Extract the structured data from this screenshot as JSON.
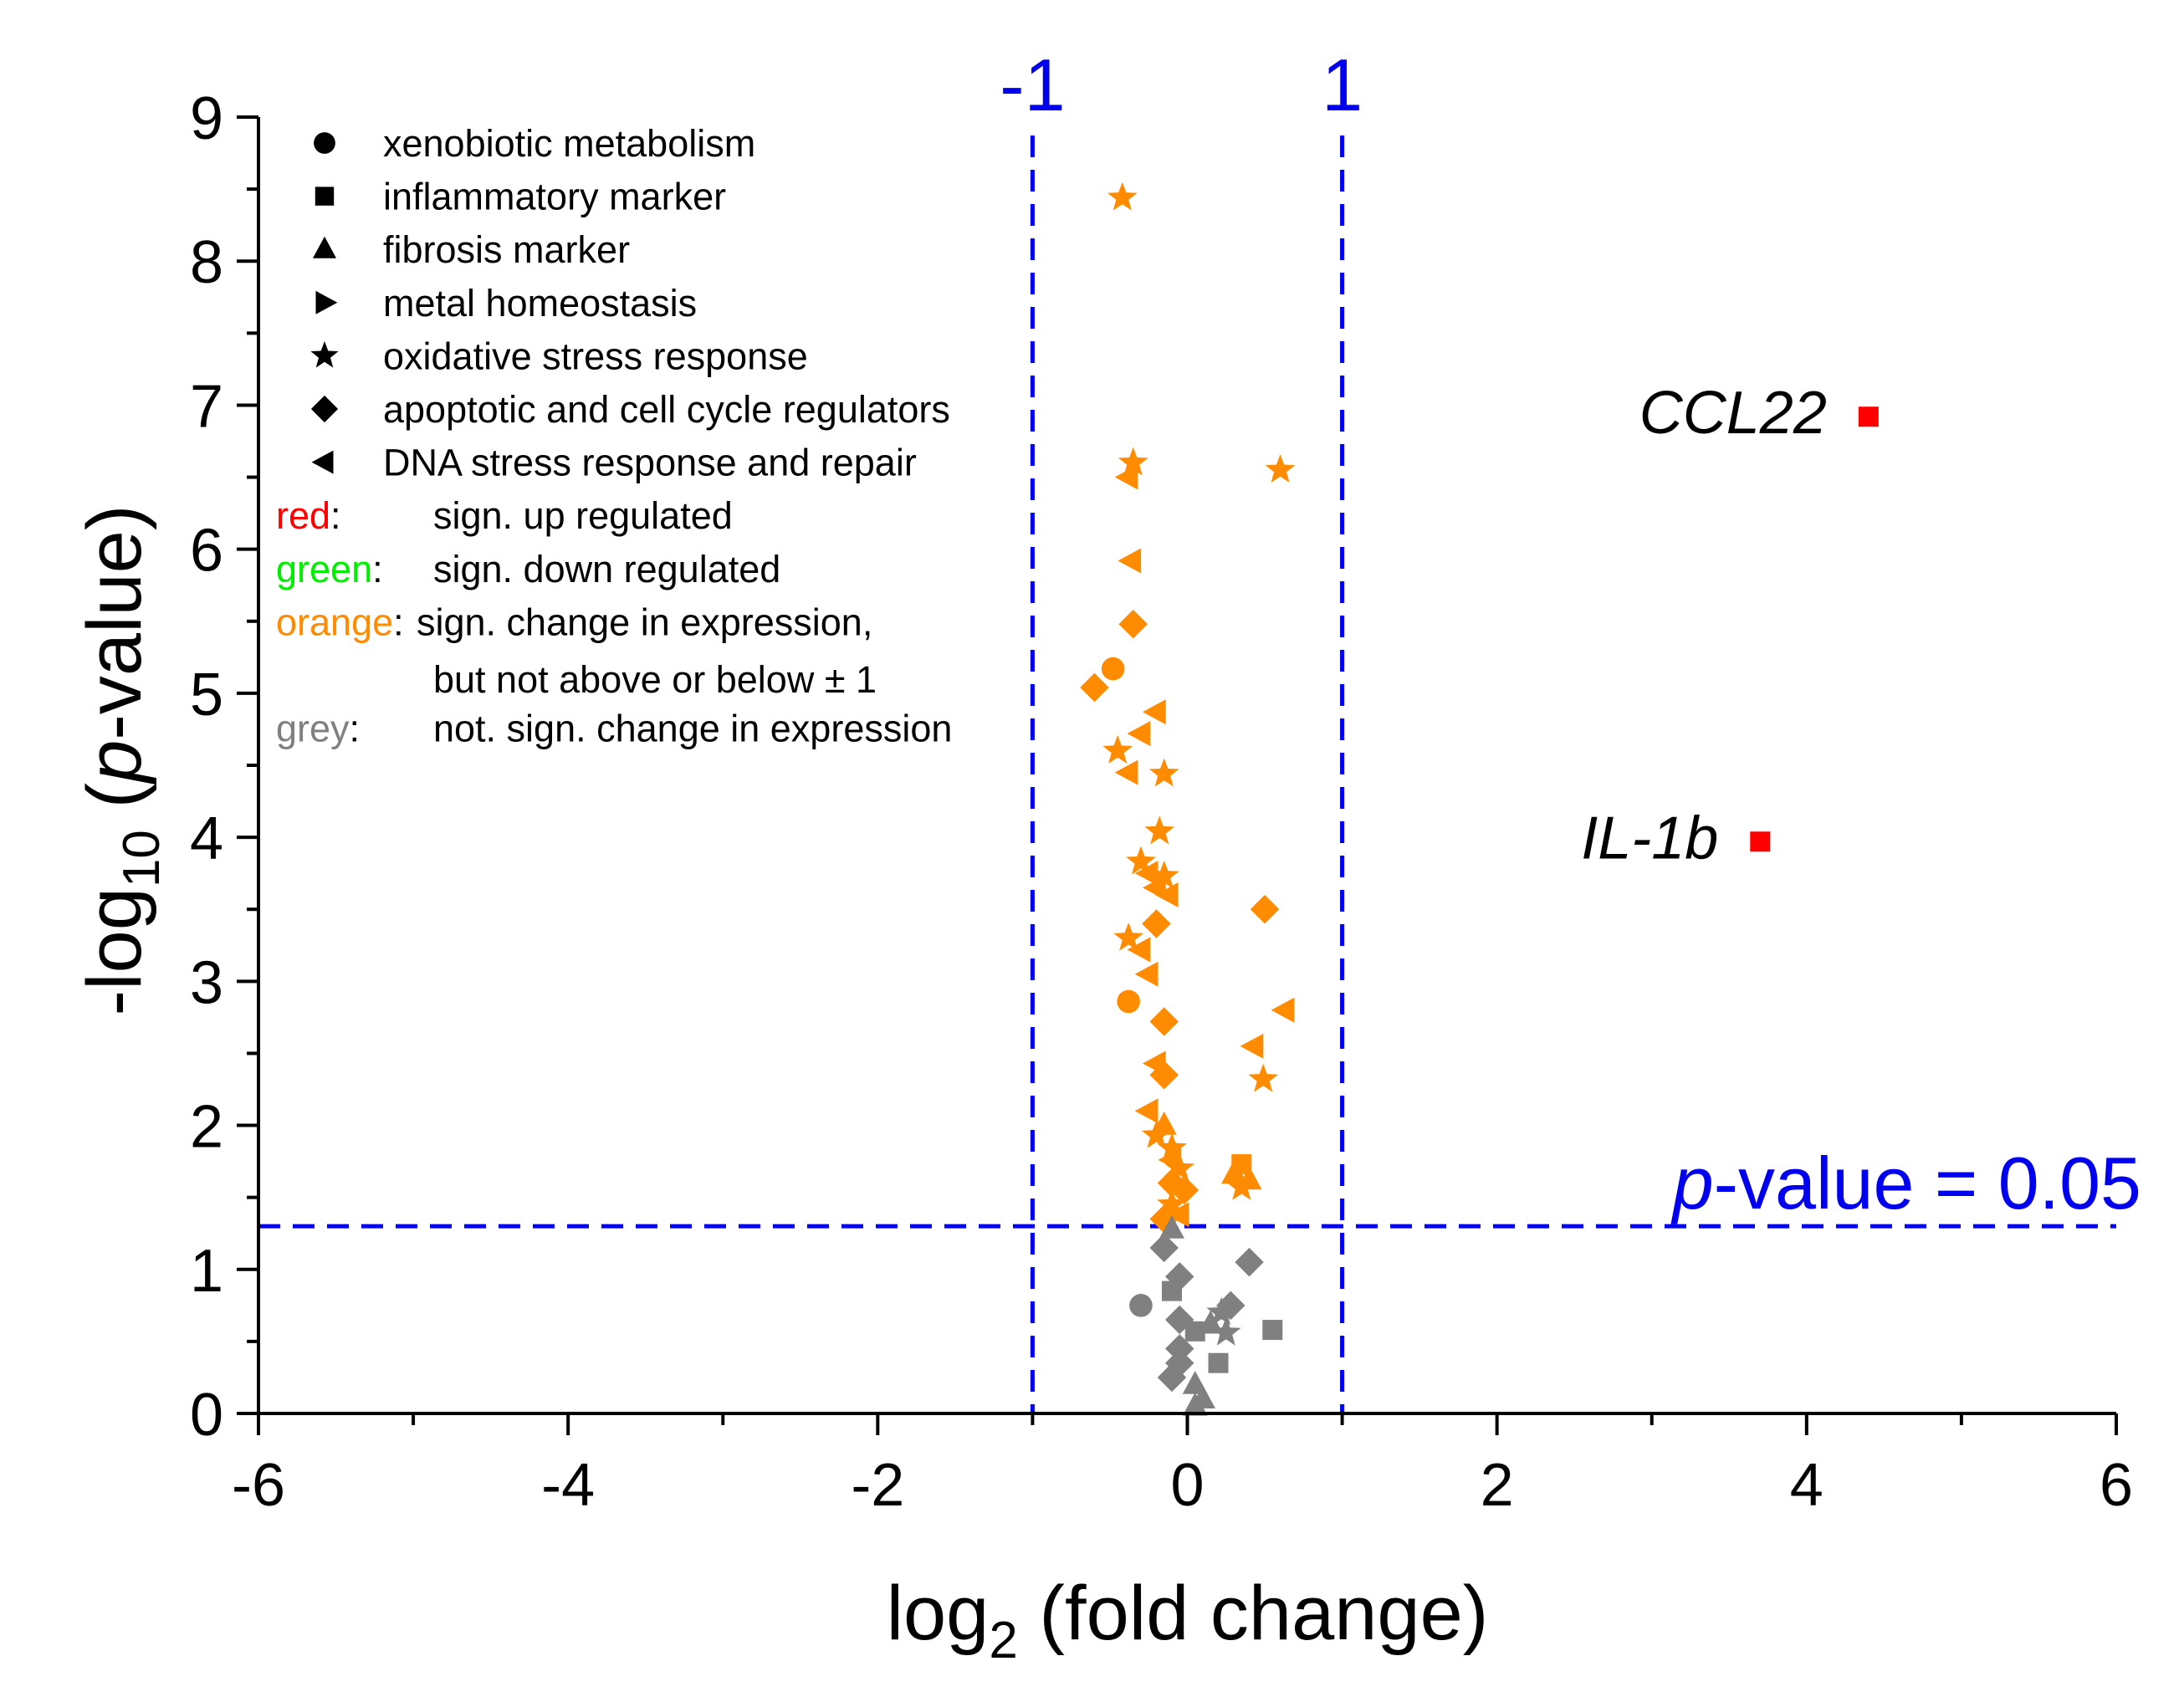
{
  "chart_data": {
    "type": "scatter",
    "title": "",
    "xlabel_main": "log",
    "xlabel_sub": "2",
    "xlabel_rest": " (fold change)",
    "ylabel_pre": "-log",
    "ylabel_sub": "10",
    "ylabel_open": " (",
    "ylabel_italic": "p",
    "ylabel_rest": "-value)",
    "xlim": [
      -6,
      6
    ],
    "ylim": [
      0,
      9
    ],
    "xticks": [
      -6,
      -4,
      -2,
      0,
      2,
      4,
      6
    ],
    "xtick_labels": [
      "-6",
      "-4",
      "-2",
      "0",
      "2",
      "4",
      "6"
    ],
    "yticks": [
      0,
      1,
      2,
      3,
      4,
      5,
      6,
      7,
      8,
      9
    ],
    "ytick_labels": [
      "0",
      "1",
      "2",
      "3",
      "4",
      "5",
      "6",
      "7",
      "8",
      "9"
    ],
    "thresholds": {
      "fc_low": -1,
      "fc_high": 1,
      "fc_low_label": "-1",
      "fc_high_label": "1",
      "pvalue_log": 1.3,
      "pvalue_label_italic": "p",
      "pvalue_label_rest": "-value = 0.05"
    },
    "colors": {
      "up": "#ff0000",
      "down": "#00ee00",
      "change": "#ff8c00",
      "nonsig": "#808080",
      "threshold": "#0000ee",
      "axis": "#000000"
    },
    "legend": {
      "shapes": [
        {
          "symbol": "circle",
          "label": "xenobiotic metabolism"
        },
        {
          "symbol": "square",
          "label": "inflammatory marker"
        },
        {
          "symbol": "triangle-up",
          "label": "fibrosis marker"
        },
        {
          "symbol": "triangle-right",
          "label": "metal homeostasis"
        },
        {
          "symbol": "star",
          "label": "oxidative stress response"
        },
        {
          "symbol": "diamond",
          "label": "apoptotic and cell cycle regulators"
        },
        {
          "symbol": "triangle-left",
          "label": "DNA stress response and repair"
        }
      ],
      "colors": [
        {
          "key": "red",
          "sep": ":",
          "text": "sign. up regulated"
        },
        {
          "key": "green",
          "sep": ":",
          "text": "sign. down regulated"
        },
        {
          "key": "orange",
          "sep": ":",
          "text": "sign. change in expression,",
          "text2": "but not above or below ± 1"
        },
        {
          "key": "grey",
          "sep": ":",
          "text": "not. sign. change in expression"
        }
      ]
    },
    "annotations": [
      {
        "label": "CCL22",
        "x": 4.4,
        "y": 6.92
      },
      {
        "label": "IL-1b",
        "x": 3.7,
        "y": 3.97
      }
    ],
    "series": [
      {
        "name": "sign. up regulated",
        "color_key": "up",
        "points": [
          {
            "x": 4.4,
            "y": 6.92,
            "s": "square"
          },
          {
            "x": 3.7,
            "y": 3.97,
            "s": "square"
          }
        ]
      },
      {
        "name": "sign. change in expression",
        "color_key": "change",
        "points": [
          {
            "x": -0.42,
            "y": 8.44,
            "s": "star"
          },
          {
            "x": -0.35,
            "y": 6.6,
            "s": "star"
          },
          {
            "x": -0.38,
            "y": 6.5,
            "s": "triangle-left"
          },
          {
            "x": 0.6,
            "y": 6.55,
            "s": "star"
          },
          {
            "x": -0.36,
            "y": 5.92,
            "s": "triangle-left"
          },
          {
            "x": -0.35,
            "y": 5.48,
            "s": "diamond"
          },
          {
            "x": -0.48,
            "y": 5.17,
            "s": "circle"
          },
          {
            "x": -0.6,
            "y": 5.04,
            "s": "diamond"
          },
          {
            "x": -0.2,
            "y": 4.87,
            "s": "triangle-left"
          },
          {
            "x": -0.3,
            "y": 4.72,
            "s": "triangle-left"
          },
          {
            "x": -0.45,
            "y": 4.6,
            "s": "star"
          },
          {
            "x": -0.15,
            "y": 4.44,
            "s": "star"
          },
          {
            "x": -0.38,
            "y": 4.45,
            "s": "triangle-left"
          },
          {
            "x": -0.18,
            "y": 4.04,
            "s": "star"
          },
          {
            "x": -0.3,
            "y": 3.83,
            "s": "star"
          },
          {
            "x": -0.25,
            "y": 3.75,
            "s": "triangle-left"
          },
          {
            "x": -0.15,
            "y": 3.73,
            "s": "star"
          },
          {
            "x": -0.2,
            "y": 3.65,
            "s": "triangle-left"
          },
          {
            "x": -0.12,
            "y": 3.6,
            "s": "triangle-left"
          },
          {
            "x": 0.5,
            "y": 3.5,
            "s": "diamond"
          },
          {
            "x": -0.2,
            "y": 3.4,
            "s": "diamond"
          },
          {
            "x": -0.38,
            "y": 3.3,
            "s": "star"
          },
          {
            "x": -0.3,
            "y": 3.22,
            "s": "triangle-left"
          },
          {
            "x": -0.25,
            "y": 3.05,
            "s": "triangle-left"
          },
          {
            "x": 0.63,
            "y": 2.8,
            "s": "triangle-left"
          },
          {
            "x": -0.38,
            "y": 2.86,
            "s": "circle"
          },
          {
            "x": -0.15,
            "y": 2.72,
            "s": "diamond"
          },
          {
            "x": 0.43,
            "y": 2.55,
            "s": "triangle-left"
          },
          {
            "x": -0.2,
            "y": 2.43,
            "s": "triangle-left"
          },
          {
            "x": -0.15,
            "y": 2.35,
            "s": "diamond"
          },
          {
            "x": 0.49,
            "y": 2.32,
            "s": "star"
          },
          {
            "x": -0.25,
            "y": 2.1,
            "s": "triangle-left"
          },
          {
            "x": -0.15,
            "y": 2.0,
            "s": "triangle-up"
          },
          {
            "x": -0.2,
            "y": 1.93,
            "s": "star"
          },
          {
            "x": -0.1,
            "y": 1.84,
            "s": "star"
          },
          {
            "x": -0.1,
            "y": 1.76,
            "s": "triangle-left"
          },
          {
            "x": -0.05,
            "y": 1.7,
            "s": "star"
          },
          {
            "x": 0.35,
            "y": 1.73,
            "s": "square"
          },
          {
            "x": 0.3,
            "y": 1.66,
            "s": "triangle-up"
          },
          {
            "x": 0.4,
            "y": 1.62,
            "s": "triangle-up"
          },
          {
            "x": -0.1,
            "y": 1.6,
            "s": "diamond"
          },
          {
            "x": -0.02,
            "y": 1.55,
            "s": "diamond"
          },
          {
            "x": 0.35,
            "y": 1.57,
            "s": "star"
          },
          {
            "x": -0.1,
            "y": 1.45,
            "s": "star"
          },
          {
            "x": -0.15,
            "y": 1.35,
            "s": "diamond"
          },
          {
            "x": -0.05,
            "y": 1.38,
            "s": "triangle-left"
          }
        ]
      },
      {
        "name": "not. sign. change in expression",
        "color_key": "nonsig",
        "points": [
          {
            "x": -0.1,
            "y": 1.28,
            "s": "triangle-up"
          },
          {
            "x": -0.15,
            "y": 1.15,
            "s": "diamond"
          },
          {
            "x": 0.4,
            "y": 1.05,
            "s": "diamond"
          },
          {
            "x": -0.05,
            "y": 0.95,
            "s": "diamond"
          },
          {
            "x": -0.1,
            "y": 0.85,
            "s": "square"
          },
          {
            "x": -0.3,
            "y": 0.75,
            "s": "circle"
          },
          {
            "x": 0.28,
            "y": 0.75,
            "s": "diamond"
          },
          {
            "x": 0.22,
            "y": 0.7,
            "s": "star"
          },
          {
            "x": -0.05,
            "y": 0.65,
            "s": "diamond"
          },
          {
            "x": 0.15,
            "y": 0.62,
            "s": "triangle-up"
          },
          {
            "x": 0.55,
            "y": 0.58,
            "s": "square"
          },
          {
            "x": 0.05,
            "y": 0.57,
            "s": "square"
          },
          {
            "x": 0.25,
            "y": 0.56,
            "s": "star"
          },
          {
            "x": -0.05,
            "y": 0.45,
            "s": "diamond"
          },
          {
            "x": 0.2,
            "y": 0.35,
            "s": "square"
          },
          {
            "x": -0.05,
            "y": 0.35,
            "s": "diamond"
          },
          {
            "x": -0.1,
            "y": 0.25,
            "s": "diamond"
          },
          {
            "x": 0.05,
            "y": 0.2,
            "s": "triangle-up"
          },
          {
            "x": 0.1,
            "y": 0.1,
            "s": "triangle-up"
          },
          {
            "x": 0.05,
            "y": 0.05,
            "s": "triangle-up"
          }
        ]
      }
    ]
  }
}
